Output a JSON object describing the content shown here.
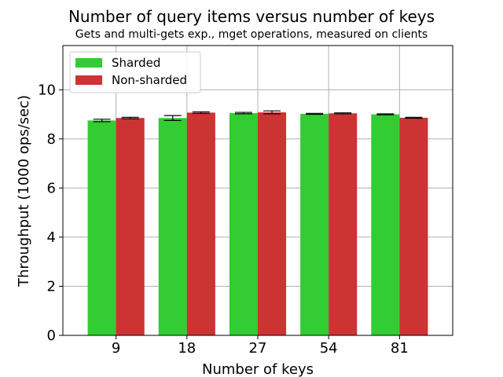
{
  "chart_data": {
    "type": "bar",
    "title": "Number of query items versus number of keys",
    "subtitle": "Gets and multi-gets exp., mget operations, measured on clients",
    "xlabel": "Number of keys",
    "ylabel": "Throughput (1000 ops/sec)",
    "categories": [
      "9",
      "18",
      "27",
      "54",
      "81"
    ],
    "ylim": [
      0,
      11.8
    ],
    "yticks": [
      0,
      2,
      4,
      6,
      8,
      10
    ],
    "grid": true,
    "legend_position": "top-left",
    "series": [
      {
        "name": "Sharded",
        "color": "#33cc33",
        "values": [
          8.75,
          8.85,
          9.05,
          9.02,
          9.0
        ],
        "errors": [
          0.05,
          0.1,
          0.03,
          0.02,
          0.02
        ]
      },
      {
        "name": "Non-sharded",
        "color": "#cc3333",
        "values": [
          8.85,
          9.07,
          9.08,
          9.04,
          8.86
        ],
        "errors": [
          0.03,
          0.03,
          0.06,
          0.02,
          0.02
        ]
      }
    ]
  }
}
